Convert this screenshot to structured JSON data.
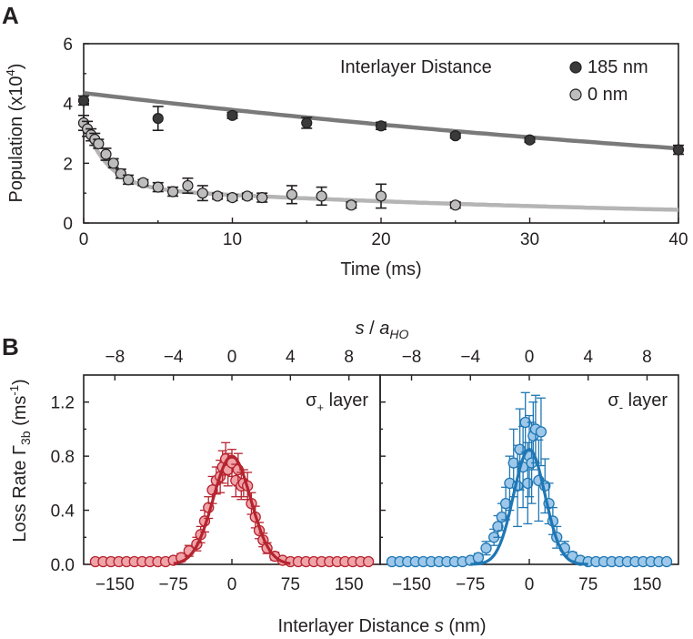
{
  "colors": {
    "dark_series": "#3a3a3a",
    "light_series": "#bdbdbd",
    "dark_fit": "#7a7a7a",
    "light_fit": "#b5b5b5",
    "red_fill": "#f0a3a8",
    "red_line": "#b5242f",
    "blue_fill": "#9ec8ea",
    "blue_line": "#1f77b4"
  },
  "chart_data": [
    {
      "type": "scatter",
      "panel": "A",
      "xlabel": "Time (ms)",
      "ylabel_main": "Population (x10",
      "ylabel_exp": "4",
      "ylabel_tail": ")",
      "xlim": [
        0,
        40
      ],
      "ylim": [
        0,
        6
      ],
      "xticks": [
        "0",
        "10",
        "20",
        "30",
        "40"
      ],
      "yticks": [
        "0",
        "2",
        "4",
        "6"
      ],
      "legend_title": "Interlayer Distance",
      "series": [
        {
          "name": "185 nm",
          "x": [
            0,
            5,
            10,
            15,
            20,
            25,
            30,
            40
          ],
          "y": [
            4.1,
            3.5,
            3.6,
            3.35,
            3.25,
            2.92,
            2.78,
            2.45
          ],
          "err": [
            0.15,
            0.4,
            0.1,
            0.18,
            0.12,
            0.08,
            0.08,
            0.15
          ],
          "fit": {
            "a": 4.35,
            "tau": 72
          }
        },
        {
          "name": "0 nm",
          "x": [
            0,
            0.25,
            0.5,
            0.75,
            1,
            1.5,
            2,
            2.5,
            3,
            4,
            5,
            6,
            7,
            8,
            9,
            10,
            11,
            12,
            14,
            16,
            18,
            20,
            25
          ],
          "y": [
            3.35,
            3.15,
            2.95,
            2.8,
            2.65,
            2.3,
            2.0,
            1.65,
            1.45,
            1.35,
            1.2,
            1.05,
            1.25,
            1.0,
            0.9,
            0.85,
            0.9,
            0.85,
            0.95,
            0.9,
            0.6,
            0.9,
            0.6
          ],
          "err": [
            0.25,
            0.25,
            0.2,
            0.2,
            0.15,
            0.2,
            0.15,
            0.15,
            0.15,
            0.1,
            0.15,
            0.15,
            0.25,
            0.25,
            0.1,
            0.1,
            0.1,
            0.15,
            0.3,
            0.3,
            0.1,
            0.4,
            0.1
          ],
          "fit": {
            "a1": 2.2,
            "t1": 1.6,
            "a2": 1.2,
            "t2": 40
          }
        }
      ]
    },
    {
      "type": "scatter",
      "panel": "B-left",
      "annotation_main": "σ",
      "annotation_sub": "+",
      "annotation_tail": " layer",
      "xlim": [
        -190,
        190
      ],
      "ylim": [
        0,
        1.4
      ],
      "xticks": [
        "−150",
        "−75",
        "0",
        "75",
        "150"
      ],
      "top_xticks": [
        "−8",
        "−4",
        "0",
        "4",
        "8"
      ],
      "yticks": [
        "0.0",
        "0.4",
        "0.8",
        "1.2"
      ],
      "fit": {
        "amp": 0.8,
        "sigma": 24
      },
      "points_x": [
        -175,
        -165,
        -155,
        -145,
        -135,
        -125,
        -115,
        -105,
        -95,
        -85,
        -75,
        -65,
        -55,
        -45,
        -40,
        -35,
        -30,
        -25,
        -20,
        -15,
        -12,
        -8,
        -5,
        0,
        5,
        8,
        12,
        15,
        20,
        25,
        30,
        35,
        40,
        45,
        55,
        65,
        75,
        85,
        95,
        105,
        115,
        125,
        135,
        145,
        155,
        165,
        175
      ],
      "points_y": [
        0.02,
        0.02,
        0.02,
        0.02,
        0.02,
        0.02,
        0.02,
        0.02,
        0.02,
        0.02,
        0.03,
        0.05,
        0.1,
        0.15,
        0.22,
        0.32,
        0.42,
        0.55,
        0.62,
        0.65,
        0.72,
        0.78,
        0.7,
        0.75,
        0.62,
        0.7,
        0.58,
        0.6,
        0.58,
        0.45,
        0.35,
        0.25,
        0.18,
        0.12,
        0.06,
        0.03,
        0.02,
        0.02,
        0.02,
        0.02,
        0.02,
        0.02,
        0.02,
        0.02,
        0.02,
        0.02,
        0.02
      ],
      "points_err": [
        0.02,
        0.02,
        0.02,
        0.02,
        0.02,
        0.02,
        0.02,
        0.02,
        0.02,
        0.02,
        0.02,
        0.03,
        0.04,
        0.05,
        0.06,
        0.08,
        0.08,
        0.1,
        0.1,
        0.12,
        0.12,
        0.12,
        0.12,
        0.1,
        0.12,
        0.12,
        0.1,
        0.1,
        0.1,
        0.08,
        0.08,
        0.06,
        0.05,
        0.04,
        0.03,
        0.02,
        0.02,
        0.02,
        0.02,
        0.02,
        0.02,
        0.02,
        0.02,
        0.02,
        0.02,
        0.02,
        0.02
      ]
    },
    {
      "type": "scatter",
      "panel": "B-right",
      "annotation_main": "σ",
      "annotation_sub": "-",
      "annotation_tail": " layer",
      "xlim": [
        -190,
        190
      ],
      "ylim": [
        0,
        1.4
      ],
      "xticks": [
        "−150",
        "−75",
        "0",
        "75",
        "150"
      ],
      "top_xticks": [
        "−8",
        "−4",
        "0",
        "4",
        "8"
      ],
      "fit": {
        "amp": 0.85,
        "sigma": 20
      },
      "points_x": [
        -175,
        -165,
        -155,
        -145,
        -135,
        -125,
        -115,
        -105,
        -95,
        -85,
        -75,
        -65,
        -55,
        -45,
        -40,
        -35,
        -30,
        -25,
        -20,
        -15,
        -12,
        -8,
        -5,
        -2,
        0,
        3,
        5,
        8,
        12,
        15,
        20,
        25,
        30,
        35,
        45,
        55,
        65,
        75,
        85,
        95,
        105,
        115,
        125,
        135,
        145,
        155,
        165,
        175
      ],
      "points_y": [
        0.02,
        0.02,
        0.02,
        0.02,
        0.02,
        0.02,
        0.02,
        0.02,
        0.02,
        0.02,
        0.03,
        0.05,
        0.12,
        0.2,
        0.28,
        0.35,
        0.45,
        0.6,
        0.75,
        0.58,
        0.85,
        0.72,
        1.05,
        0.6,
        0.8,
        0.75,
        0.95,
        1.0,
        0.62,
        0.98,
        0.58,
        0.45,
        0.32,
        0.2,
        0.12,
        0.06,
        0.03,
        0.02,
        0.02,
        0.02,
        0.02,
        0.02,
        0.02,
        0.02,
        0.02,
        0.02,
        0.02,
        0.02
      ],
      "points_err": [
        0.02,
        0.02,
        0.02,
        0.02,
        0.02,
        0.02,
        0.02,
        0.02,
        0.02,
        0.02,
        0.02,
        0.03,
        0.05,
        0.06,
        0.08,
        0.1,
        0.12,
        0.2,
        0.25,
        0.3,
        0.3,
        0.3,
        0.22,
        0.3,
        0.3,
        0.3,
        0.25,
        0.25,
        0.3,
        0.25,
        0.2,
        0.15,
        0.1,
        0.08,
        0.05,
        0.03,
        0.02,
        0.02,
        0.02,
        0.02,
        0.02,
        0.02,
        0.02,
        0.02,
        0.02,
        0.02,
        0.02,
        0.02
      ]
    }
  ],
  "panelB": {
    "ylabel_main": "Loss Rate Γ",
    "ylabel_sub": "3b",
    "ylabel_unit": " (ms",
    "ylabel_exp": "-1",
    "ylabel_close": ")",
    "xlabel_main": "Interlayer Distance ",
    "xlabel_italic": "s",
    "xlabel_tail": " (nm)",
    "top_label_s": "s",
    "top_label_sep": " / ",
    "top_label_a": "a",
    "top_label_sub": "HO"
  },
  "labels": {
    "panelA": "A",
    "panelB": "B"
  }
}
